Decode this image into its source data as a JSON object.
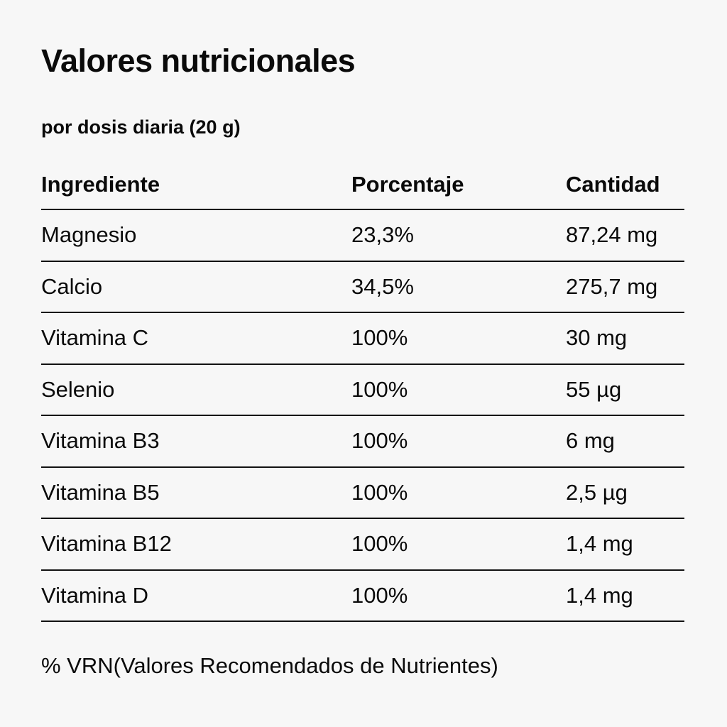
{
  "title": "Valores nutricionales",
  "subtitle": "por dosis diaria (20 g)",
  "table": {
    "headers": {
      "ingredient": "Ingrediente",
      "percentage": "Porcentaje",
      "quantity": "Cantidad"
    },
    "rows": [
      {
        "ingredient": "Magnesio",
        "percentage": "23,3%",
        "quantity": "87,24 mg"
      },
      {
        "ingredient": "Calcio",
        "percentage": "34,5%",
        "quantity": "275,7 mg"
      },
      {
        "ingredient": "Vitamina C",
        "percentage": "100%",
        "quantity": "30 mg"
      },
      {
        "ingredient": "Selenio",
        "percentage": "100%",
        "quantity": "55 µg"
      },
      {
        "ingredient": "Vitamina B3",
        "percentage": "100%",
        "quantity": "6 mg"
      },
      {
        "ingredient": "Vitamina B5",
        "percentage": "100%",
        "quantity": "2,5 µg"
      },
      {
        "ingredient": "Vitamina B12",
        "percentage": "100%",
        "quantity": "1,4 mg"
      },
      {
        "ingredient": "Vitamina D",
        "percentage": "100%",
        "quantity": "1,4 mg"
      }
    ]
  },
  "footnote": "% VRN(Valores Recomendados de Nutrientes)",
  "colors": {
    "background": "#f7f7f7",
    "text": "#0a0a0a",
    "rule": "#111111"
  }
}
